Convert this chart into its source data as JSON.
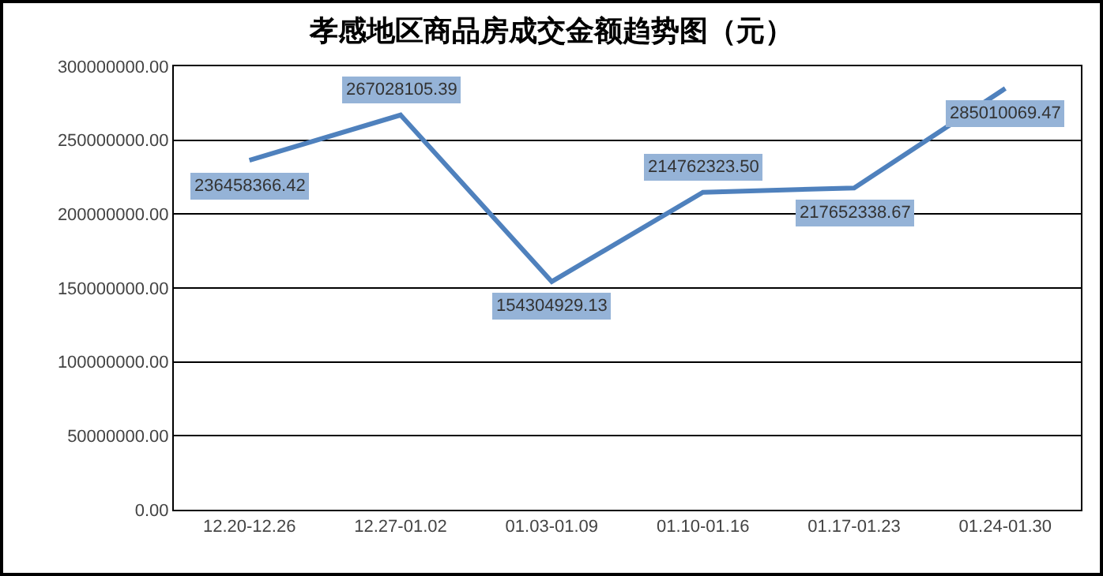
{
  "chart_data": {
    "type": "line",
    "title": "孝感地区商品房成交金额趋势图（元）",
    "categories": [
      "12.20-12.26",
      "12.27-01.02",
      "01.03-01.09",
      "01.10-01.16",
      "01.17-01.23",
      "01.24-01.30"
    ],
    "series": [
      {
        "color": "#4f81bd",
        "values": [
          236458366.42,
          267028105.39,
          154304929.13,
          214762323.5,
          217652338.67,
          285010069.47
        ],
        "value_labels": [
          "236458366.42",
          "267028105.39",
          "154304929.13",
          "214762323.50",
          "217652338.67",
          "285010069.47"
        ]
      }
    ],
    "ylim": [
      0,
      300000000
    ],
    "yticks": [
      {
        "value": 0,
        "label": "0.00"
      },
      {
        "value": 50000000,
        "label": "50000000.00"
      },
      {
        "value": 100000000,
        "label": "100000000.00"
      },
      {
        "value": 150000000,
        "label": "150000000.00"
      },
      {
        "value": 200000000,
        "label": "200000000.00"
      },
      {
        "value": 250000000,
        "label": "250000000.00"
      },
      {
        "value": 300000000,
        "label": "300000000.00"
      }
    ],
    "grid": "y",
    "marker": "none",
    "line_style": "solid"
  }
}
